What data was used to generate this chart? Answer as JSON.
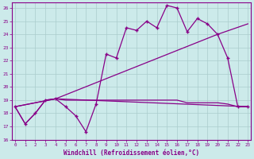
{
  "xlabel": "Windchill (Refroidissement éolien,°C)",
  "bg_color": "#cceaea",
  "grid_color": "#aacccc",
  "line_color": "#880088",
  "xlim_min": -0.3,
  "xlim_max": 23.3,
  "ylim_min": 16.0,
  "ylim_max": 26.4,
  "xticks": [
    0,
    1,
    2,
    3,
    4,
    5,
    6,
    7,
    8,
    9,
    10,
    11,
    12,
    13,
    14,
    15,
    16,
    17,
    18,
    19,
    20,
    21,
    22,
    23
  ],
  "yticks": [
    16,
    17,
    18,
    19,
    20,
    21,
    22,
    23,
    24,
    25,
    26
  ],
  "line1_x": [
    0,
    1,
    2,
    3,
    4,
    5,
    6,
    7,
    8,
    9,
    10,
    11,
    12,
    13,
    14,
    15,
    16,
    17,
    18,
    19,
    20,
    21,
    22,
    23
  ],
  "line1_y": [
    18.5,
    17.2,
    18.0,
    19.0,
    19.1,
    18.5,
    17.8,
    16.6,
    18.7,
    22.5,
    22.2,
    24.5,
    24.3,
    25.0,
    24.5,
    26.2,
    26.0,
    24.2,
    25.2,
    24.8,
    24.0,
    22.2,
    18.5,
    18.5
  ],
  "line2_x": [
    0,
    1,
    2,
    3,
    4,
    5,
    6,
    7,
    8,
    9,
    10,
    11,
    12,
    13,
    14,
    15,
    16,
    17,
    18,
    19,
    20,
    21,
    22,
    23
  ],
  "line2_y": [
    18.5,
    17.2,
    18.0,
    19.0,
    19.1,
    19.0,
    19.0,
    19.0,
    19.0,
    19.0,
    19.0,
    19.0,
    19.0,
    19.0,
    19.0,
    19.0,
    19.0,
    18.8,
    18.8,
    18.8,
    18.8,
    18.7,
    18.5,
    18.5
  ],
  "line3_x": [
    0,
    4,
    20,
    23
  ],
  "line3_y": [
    18.5,
    19.1,
    24.0,
    24.8
  ],
  "line4_x": [
    0,
    4,
    23
  ],
  "line4_y": [
    18.5,
    19.1,
    18.5
  ]
}
